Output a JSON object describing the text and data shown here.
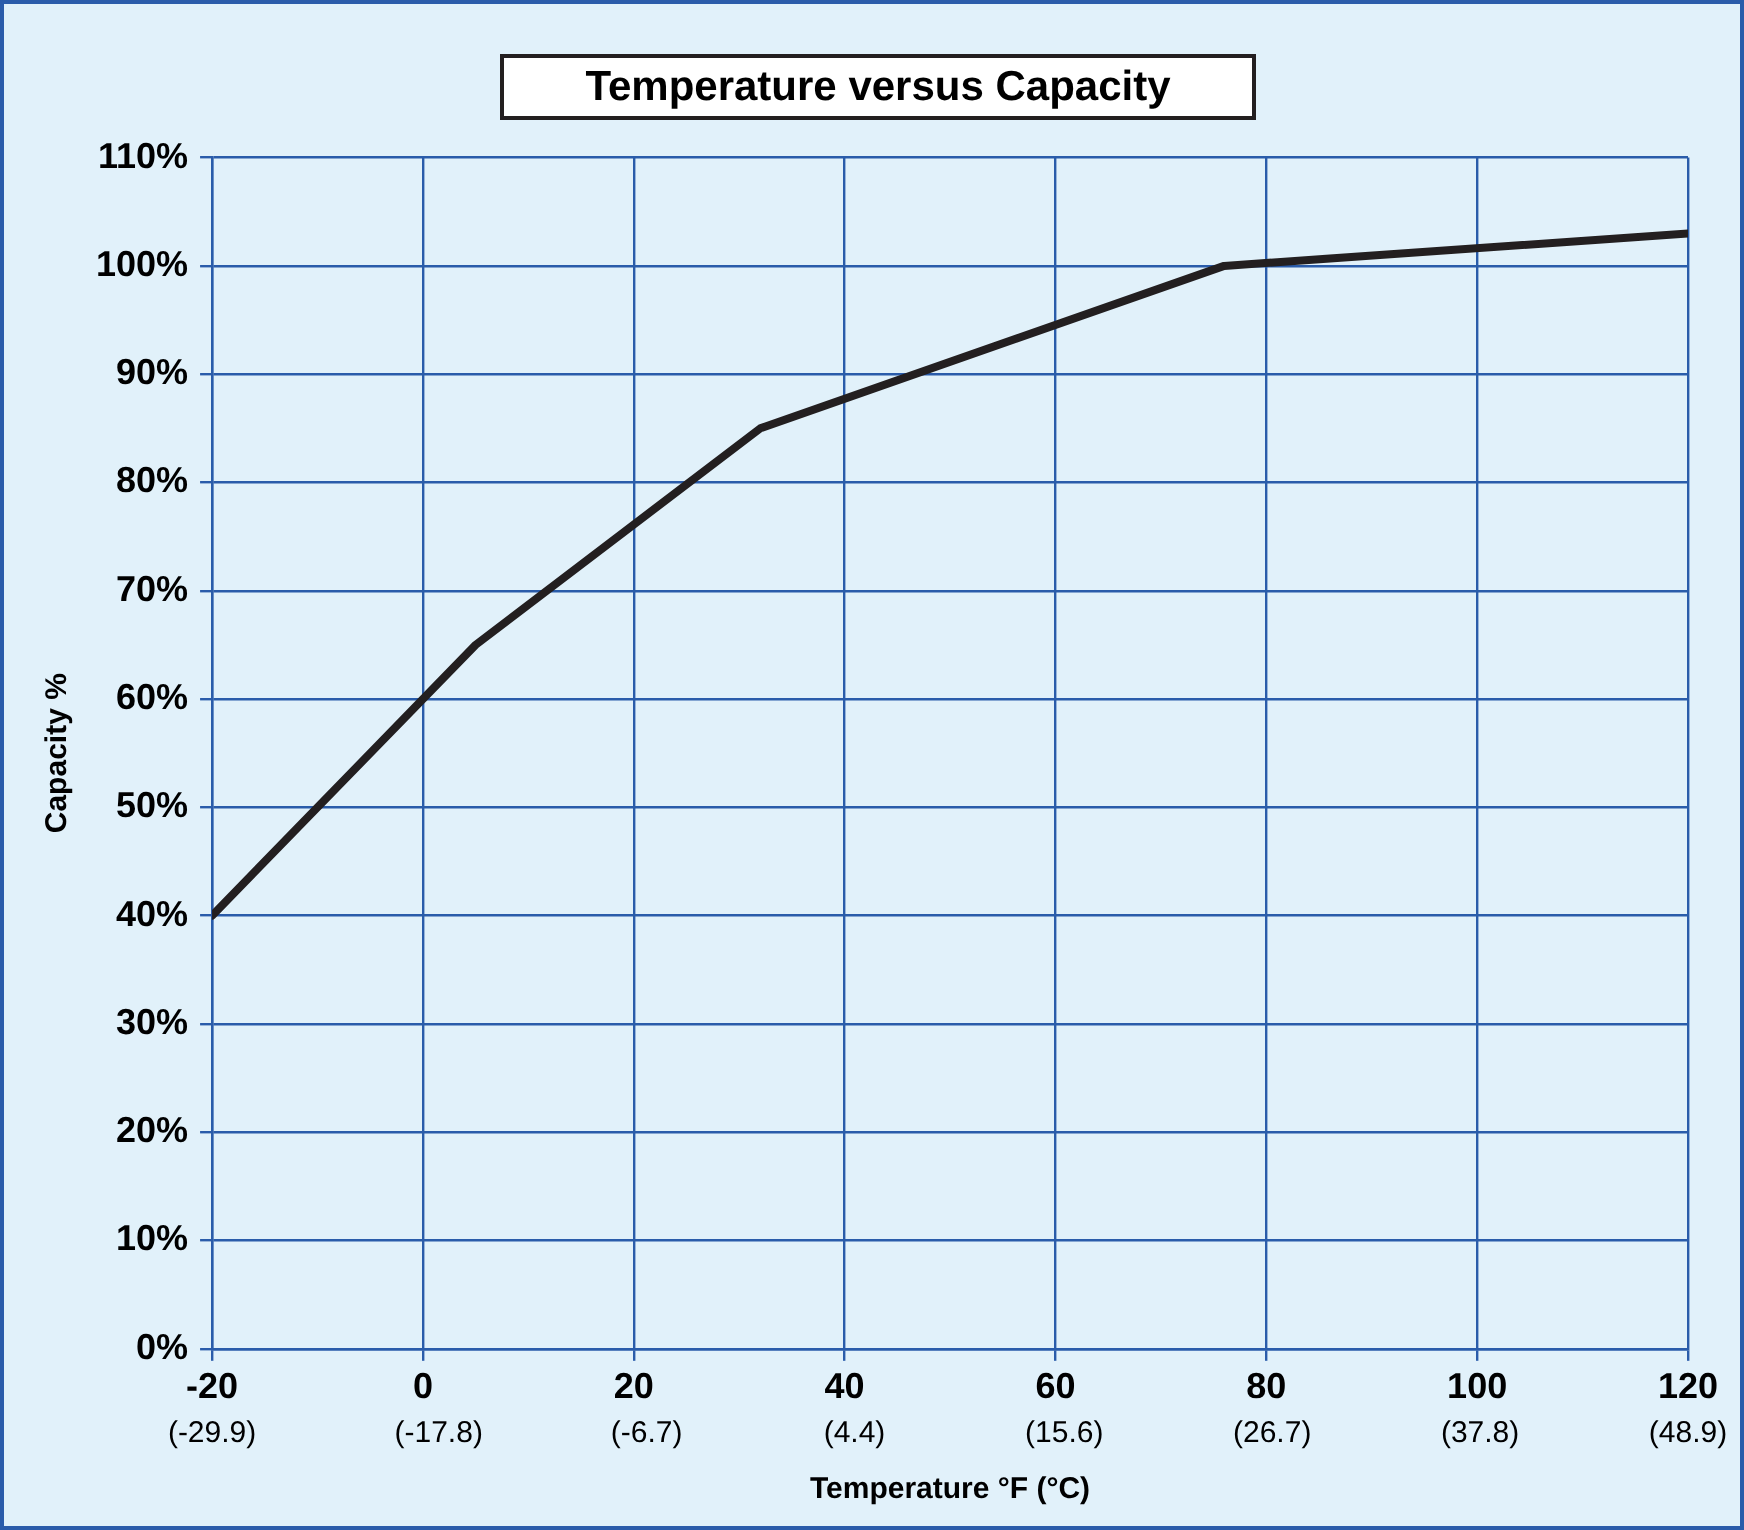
{
  "chart_data": {
    "type": "line",
    "title": "Temperature versus Capacity",
    "xlabel": "Temperature °F (°C)",
    "ylabel": "Capacity %",
    "x": [
      -20,
      5,
      32,
      76,
      120
    ],
    "series": [
      {
        "color": "#231f20",
        "values": [
          40,
          65,
          85,
          100,
          103
        ]
      }
    ],
    "xlim": [
      -20,
      120
    ],
    "xticks": [
      -20,
      0,
      20,
      40,
      60,
      80,
      100,
      120
    ],
    "x2lim": [
      -29.9,
      48.9
    ],
    "x2ticks": [
      {
        "value": -29.9,
        "label": "(-29.9)"
      },
      {
        "value": -17.8,
        "label": "(-17.8)"
      },
      {
        "value": -6.7,
        "label": "(-6.7)"
      },
      {
        "value": 4.4,
        "label": "(4.4)"
      },
      {
        "value": 15.6,
        "label": "(15.6)"
      },
      {
        "value": 26.7,
        "label": "(26.7)"
      },
      {
        "value": 37.8,
        "label": "(37.8)"
      },
      {
        "value": 48.9,
        "label": "(48.9)"
      }
    ],
    "ylim": [
      0,
      110
    ],
    "yticks": [
      {
        "value": 0,
        "label": "0%"
      },
      {
        "value": 10,
        "label": "10%"
      },
      {
        "value": 20,
        "label": "20%"
      },
      {
        "value": 30,
        "label": "30%"
      },
      {
        "value": 40,
        "label": "40%"
      },
      {
        "value": 50,
        "label": "50%"
      },
      {
        "value": 60,
        "label": "60%"
      },
      {
        "value": 70,
        "label": "70%"
      },
      {
        "value": 80,
        "label": "80%"
      },
      {
        "value": 90,
        "label": "90%"
      },
      {
        "value": 100,
        "label": "100%"
      },
      {
        "value": 110,
        "label": "110%"
      }
    ],
    "grid": true,
    "legend": false,
    "marker": "none",
    "line_style": "solid"
  }
}
